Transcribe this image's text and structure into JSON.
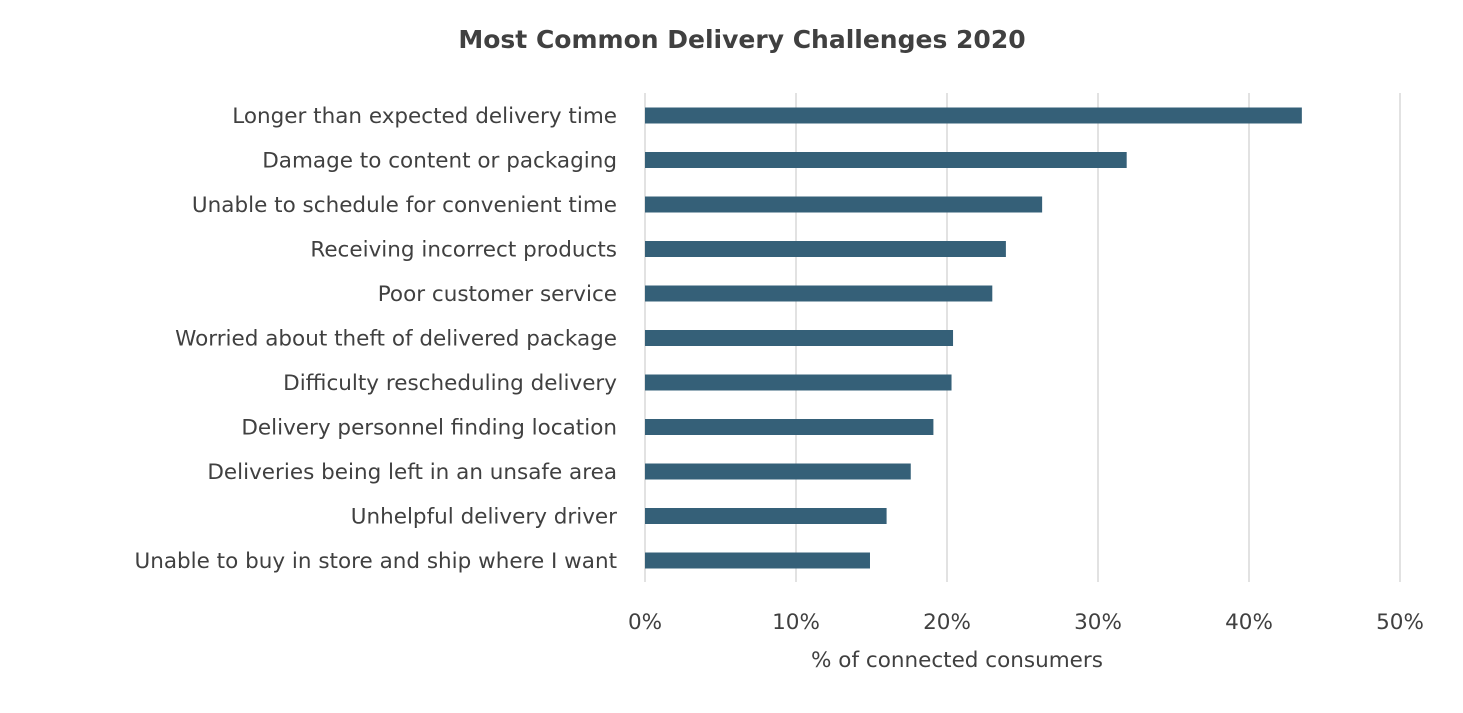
{
  "chart_data": {
    "type": "bar",
    "orientation": "horizontal",
    "title": "Most Common Delivery Challenges 2020",
    "xlabel": "% of connected consumers",
    "ylabel": "",
    "xlim": [
      0,
      50
    ],
    "x_ticks": [
      "0%",
      "10%",
      "20%",
      "30%",
      "40%",
      "50%"
    ],
    "x_tick_values": [
      0,
      10,
      20,
      30,
      40,
      50
    ],
    "grid": "vertical",
    "legend": "none",
    "bar_color": "#356078",
    "categories": [
      "Longer than expected delivery time",
      "Damage to content or packaging",
      "Unable to schedule for convenient time",
      "Receiving incorrect products",
      "Poor customer service",
      "Worried about theft of delivered package",
      "Difficulty rescheduling delivery",
      "Delivery personnel finding location",
      "Deliveries being left in an unsafe area",
      "Unhelpful delivery driver",
      "Unable to buy in store and ship where I want"
    ],
    "values": [
      43.5,
      31.9,
      26.3,
      23.9,
      23.0,
      20.4,
      20.3,
      19.1,
      17.6,
      16.0,
      14.9
    ],
    "unit": "%"
  }
}
